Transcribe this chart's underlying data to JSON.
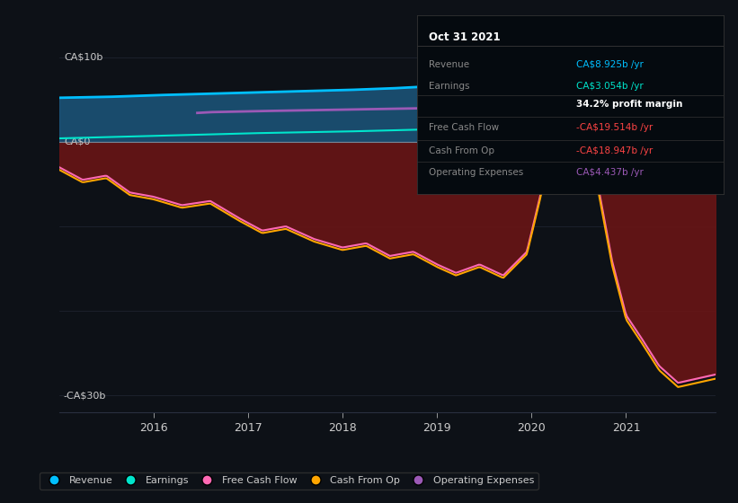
{
  "bg_color": "#0d1117",
  "plot_bg_color": "#0d1117",
  "y_label_top": "CA$10b",
  "y_label_zero": "CA$0",
  "y_label_bottom": "-CA$30b",
  "ylim": [
    -32,
    12
  ],
  "xlim_start": 2015.0,
  "xlim_end": 2021.95,
  "x_ticks": [
    2016,
    2017,
    2018,
    2019,
    2020,
    2021
  ],
  "colors": {
    "revenue": "#00bfff",
    "earnings": "#00e5cc",
    "free_cash_flow": "#ff69b4",
    "cash_from_op": "#ffa500",
    "operating_expenses": "#9b59b6",
    "revenue_fill": "#1e5f8a",
    "negative_fill": "#6b1515",
    "spike_fill": "#c8a8a8",
    "zero_line": "#aaaaaa"
  },
  "legend_items": [
    {
      "label": "Revenue",
      "color": "#00bfff"
    },
    {
      "label": "Earnings",
      "color": "#00e5cc"
    },
    {
      "label": "Free Cash Flow",
      "color": "#ff69b4"
    },
    {
      "label": "Cash From Op",
      "color": "#ffa500"
    },
    {
      "label": "Operating Expenses",
      "color": "#9b59b6"
    }
  ],
  "tooltip": {
    "date": "Oct 31 2021",
    "rows": [
      {
        "label": "Revenue",
        "value": "CA$8.925b /yr",
        "value_color": "#00bfff",
        "label_color": "#888888"
      },
      {
        "label": "Earnings",
        "value": "CA$3.054b /yr",
        "value_color": "#00e5cc",
        "label_color": "#888888"
      },
      {
        "label": "",
        "value": "34.2% profit margin",
        "value_color": "#ffffff",
        "label_color": "#888888"
      },
      {
        "label": "Free Cash Flow",
        "value": "-CA$19.514b /yr",
        "value_color": "#ff4444",
        "label_color": "#888888"
      },
      {
        "label": "Cash From Op",
        "value": "-CA$18.947b /yr",
        "value_color": "#ff4444",
        "label_color": "#888888"
      },
      {
        "label": "Operating Expenses",
        "value": "CA$4.437b /yr",
        "value_color": "#9b59b6",
        "label_color": "#888888"
      }
    ]
  }
}
